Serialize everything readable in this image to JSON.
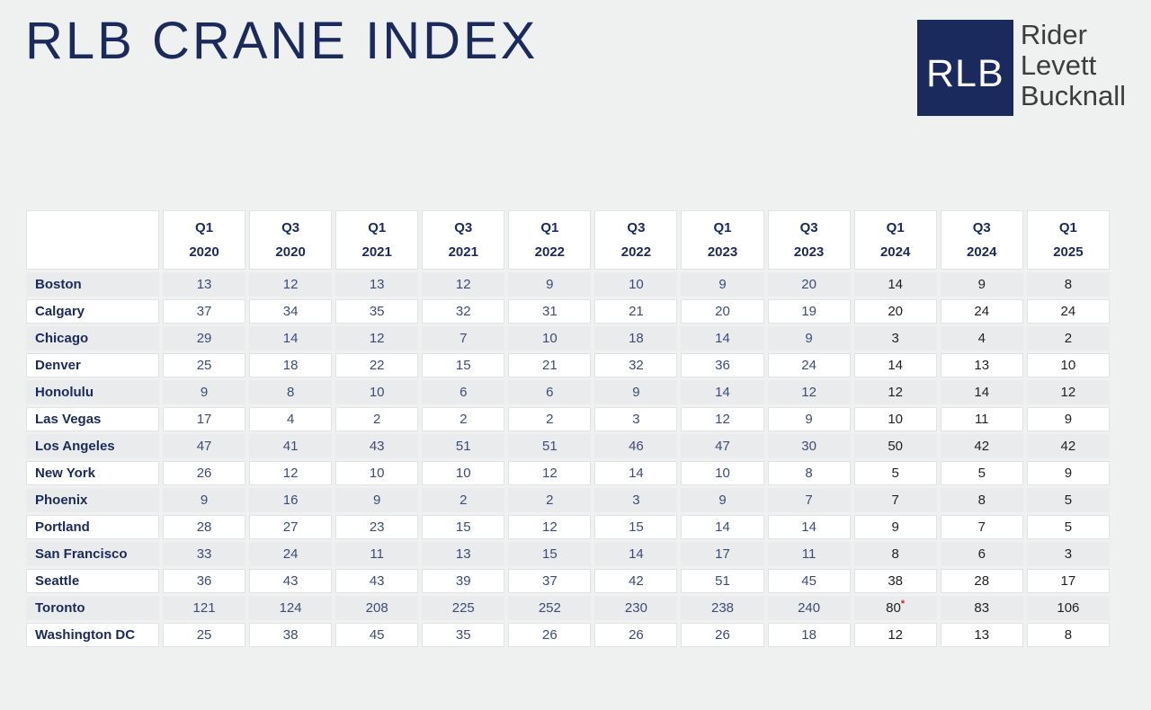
{
  "title": "RLB CRANE INDEX",
  "logo": {
    "abbr": "RLB",
    "line1": "Rider",
    "line2": "Levett",
    "line3": "Bucknall"
  },
  "colors": {
    "navy": "#1b2a5c",
    "value_navy": "#3d4c77",
    "value_dark": "#1f2023",
    "marker_red": "#cf2030",
    "row_alt_gray": "#eaebec",
    "page_bg": "#eff0f0",
    "logo_square": "#1b2a5c"
  },
  "chart_data": {
    "type": "table",
    "title": "RLB Crane Index",
    "columns": [
      "Q1 2020",
      "Q3 2020",
      "Q1 2021",
      "Q3 2021",
      "Q1 2022",
      "Q3 2022",
      "Q1 2023",
      "Q3 2023",
      "Q1 2024",
      "Q3 2024",
      "Q1 2025"
    ],
    "rows": [
      {
        "city": "Boston",
        "values": [
          13,
          12,
          13,
          12,
          9,
          10,
          9,
          20,
          14,
          9,
          8
        ]
      },
      {
        "city": "Calgary",
        "values": [
          37,
          34,
          35,
          32,
          31,
          21,
          20,
          19,
          20,
          24,
          24
        ]
      },
      {
        "city": "Chicago",
        "values": [
          29,
          14,
          12,
          7,
          10,
          18,
          14,
          9,
          3,
          4,
          2
        ]
      },
      {
        "city": "Denver",
        "values": [
          25,
          18,
          22,
          15,
          21,
          32,
          36,
          24,
          14,
          13,
          10
        ]
      },
      {
        "city": "Honolulu",
        "values": [
          9,
          8,
          10,
          6,
          6,
          9,
          14,
          12,
          12,
          14,
          12
        ]
      },
      {
        "city": "Las Vegas",
        "values": [
          17,
          4,
          2,
          2,
          2,
          3,
          12,
          9,
          10,
          11,
          9
        ]
      },
      {
        "city": "Los Angeles",
        "values": [
          47,
          41,
          43,
          51,
          51,
          46,
          47,
          30,
          50,
          42,
          42
        ]
      },
      {
        "city": "New York",
        "values": [
          26,
          12,
          10,
          10,
          12,
          14,
          10,
          8,
          5,
          5,
          9
        ]
      },
      {
        "city": "Phoenix",
        "values": [
          9,
          16,
          9,
          2,
          2,
          3,
          9,
          7,
          7,
          8,
          5
        ]
      },
      {
        "city": "Portland",
        "values": [
          28,
          27,
          23,
          15,
          12,
          15,
          14,
          14,
          9,
          7,
          5
        ]
      },
      {
        "city": "San Francisco",
        "values": [
          33,
          24,
          11,
          13,
          15,
          14,
          17,
          11,
          8,
          6,
          3
        ]
      },
      {
        "city": "Seattle",
        "values": [
          36,
          43,
          43,
          39,
          37,
          42,
          51,
          45,
          38,
          28,
          17
        ]
      },
      {
        "city": "Toronto",
        "values": [
          121,
          124,
          208,
          225,
          252,
          230,
          238,
          240,
          80,
          83,
          106
        ]
      },
      {
        "city": "Washington DC",
        "values": [
          25,
          38,
          45,
          35,
          26,
          26,
          26,
          18,
          12,
          13,
          8
        ]
      }
    ],
    "annotation": {
      "city": "Toronto",
      "column": "Q1 2024",
      "column_index": 8,
      "marker": "*"
    },
    "recent_columns_start_index": 8
  }
}
